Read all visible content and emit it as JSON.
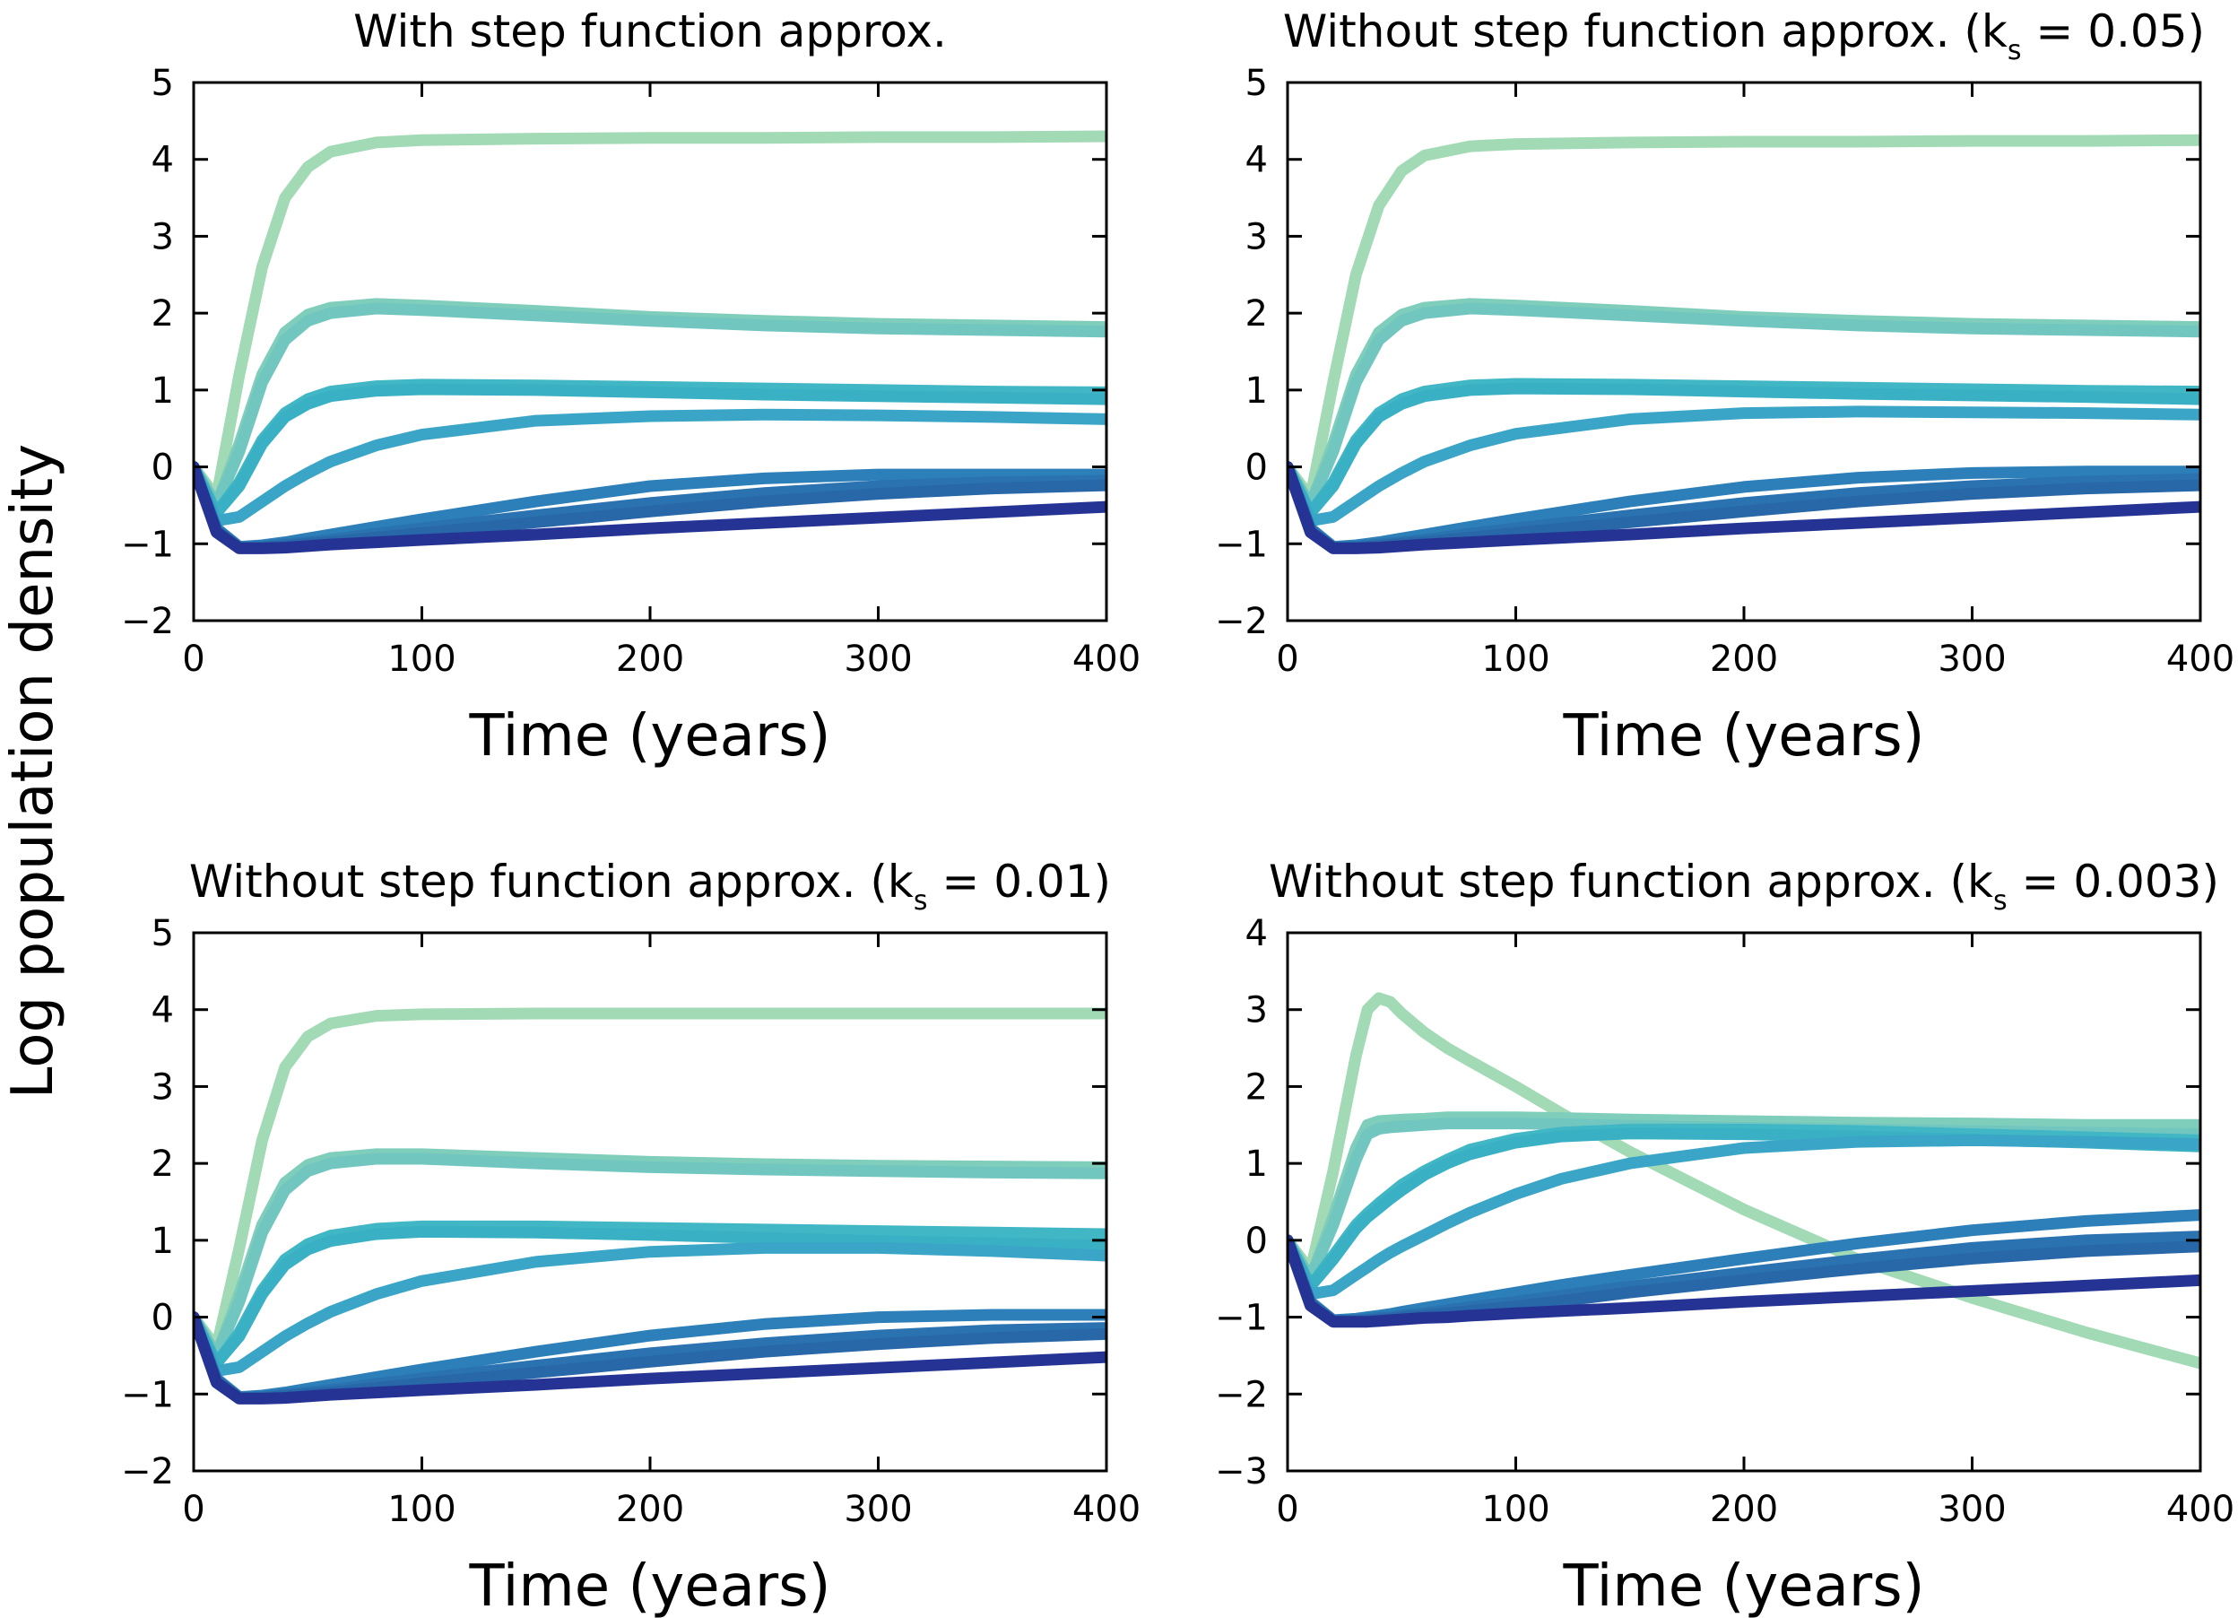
{
  "figure": {
    "ylabel": "Log population density",
    "series_colors": [
      "#a1dab4",
      "#7fcdbb",
      "#41b6c4",
      "#3aa5c6",
      "#2c7fb8",
      "#2867a8",
      "#253494"
    ]
  },
  "chart_data": [
    {
      "type": "line",
      "title": "With step function approx.",
      "title_sub": "",
      "title_suffix": "",
      "xlabel": "Time (years)",
      "ylabel": "Log population density",
      "xlim": [
        0,
        400
      ],
      "ylim": [
        -2,
        5
      ],
      "xticks": [
        0,
        100,
        200,
        300,
        400
      ],
      "yticks": [
        -2,
        -1,
        0,
        1,
        2,
        3,
        4,
        5
      ],
      "ytick_labels": [
        "−2",
        "−1",
        "0",
        "1",
        "2",
        "3",
        "4",
        "5"
      ],
      "x": [
        0,
        10,
        20,
        30,
        40,
        50,
        60,
        80,
        100,
        150,
        200,
        250,
        300,
        350,
        400
      ],
      "series": [
        {
          "color": "#a1dab4",
          "values": [
            0,
            -0.4,
            1.2,
            2.6,
            3.5,
            3.9,
            4.1,
            4.22,
            4.25,
            4.27,
            4.28,
            4.28,
            4.29,
            4.29,
            4.3
          ]
        },
        {
          "color": "#7fcdbb",
          "values": [
            0,
            -0.5,
            0.3,
            1.2,
            1.75,
            1.98,
            2.07,
            2.12,
            2.1,
            2.03,
            1.95,
            1.9,
            1.86,
            1.84,
            1.82
          ]
        },
        {
          "color": "#72c6c0",
          "values": [
            0,
            -0.5,
            0.2,
            1.1,
            1.65,
            1.9,
            2.0,
            2.06,
            2.04,
            1.97,
            1.9,
            1.84,
            1.8,
            1.78,
            1.76
          ]
        },
        {
          "color": "#41b6c4",
          "values": [
            0,
            -0.6,
            -0.2,
            0.35,
            0.7,
            0.88,
            0.98,
            1.05,
            1.07,
            1.06,
            1.04,
            1.02,
            1.0,
            0.98,
            0.97
          ]
        },
        {
          "color": "#3ab0c4",
          "values": [
            0,
            -0.6,
            -0.25,
            0.3,
            0.65,
            0.82,
            0.92,
            0.99,
            1.01,
            1.0,
            0.97,
            0.94,
            0.92,
            0.9,
            0.88
          ]
        },
        {
          "color": "#3aa5c6",
          "values": [
            0,
            -0.7,
            -0.65,
            -0.45,
            -0.25,
            -0.08,
            0.07,
            0.28,
            0.42,
            0.6,
            0.66,
            0.68,
            0.67,
            0.65,
            0.62
          ]
        },
        {
          "color": "#2c7fb8",
          "values": [
            0,
            -0.8,
            -1.04,
            -1.02,
            -0.98,
            -0.93,
            -0.88,
            -0.78,
            -0.68,
            -0.45,
            -0.25,
            -0.15,
            -0.1,
            -0.1,
            -0.1
          ]
        },
        {
          "color": "#2a72b0",
          "values": [
            0,
            -0.82,
            -1.05,
            -1.04,
            -1.01,
            -0.98,
            -0.95,
            -0.87,
            -0.8,
            -0.63,
            -0.47,
            -0.34,
            -0.25,
            -0.2,
            -0.18
          ]
        },
        {
          "color": "#2867a8",
          "values": [
            0,
            -0.83,
            -1.05,
            -1.05,
            -1.03,
            -1.0,
            -0.98,
            -0.92,
            -0.86,
            -0.72,
            -0.58,
            -0.45,
            -0.35,
            -0.28,
            -0.24
          ]
        },
        {
          "color": "#253494",
          "values": [
            0,
            -0.85,
            -1.06,
            -1.06,
            -1.05,
            -1.03,
            -1.01,
            -0.98,
            -0.95,
            -0.88,
            -0.8,
            -0.73,
            -0.66,
            -0.59,
            -0.52
          ]
        }
      ]
    },
    {
      "type": "line",
      "title": "Without step function approx. (k",
      "title_sub": "s",
      "title_suffix": " = 0.05)",
      "xlabel": "Time (years)",
      "ylabel": "Log population density",
      "xlim": [
        0,
        400
      ],
      "ylim": [
        -2,
        5
      ],
      "xticks": [
        0,
        100,
        200,
        300,
        400
      ],
      "yticks": [
        -2,
        -1,
        0,
        1,
        2,
        3,
        4,
        5
      ],
      "ytick_labels": [
        "−2",
        "−1",
        "0",
        "1",
        "2",
        "3",
        "4",
        "5"
      ],
      "x": [
        0,
        10,
        20,
        30,
        40,
        50,
        60,
        80,
        100,
        150,
        200,
        250,
        300,
        350,
        400
      ],
      "series": [
        {
          "color": "#a1dab4",
          "values": [
            0,
            -0.4,
            1.1,
            2.5,
            3.4,
            3.85,
            4.05,
            4.17,
            4.2,
            4.22,
            4.23,
            4.23,
            4.24,
            4.24,
            4.25
          ]
        },
        {
          "color": "#7fcdbb",
          "values": [
            0,
            -0.5,
            0.3,
            1.2,
            1.75,
            1.98,
            2.07,
            2.12,
            2.1,
            2.03,
            1.95,
            1.9,
            1.86,
            1.84,
            1.82
          ]
        },
        {
          "color": "#72c6c0",
          "values": [
            0,
            -0.5,
            0.2,
            1.1,
            1.65,
            1.9,
            2.0,
            2.06,
            2.04,
            1.97,
            1.9,
            1.84,
            1.8,
            1.78,
            1.76
          ]
        },
        {
          "color": "#41b6c4",
          "values": [
            0,
            -0.6,
            -0.2,
            0.35,
            0.7,
            0.88,
            0.98,
            1.06,
            1.08,
            1.07,
            1.05,
            1.03,
            1.01,
            0.99,
            0.98
          ]
        },
        {
          "color": "#3ab0c4",
          "values": [
            0,
            -0.6,
            -0.25,
            0.3,
            0.65,
            0.82,
            0.92,
            1.0,
            1.02,
            1.01,
            0.98,
            0.95,
            0.93,
            0.91,
            0.88
          ]
        },
        {
          "color": "#3aa5c6",
          "values": [
            0,
            -0.7,
            -0.65,
            -0.45,
            -0.25,
            -0.08,
            0.07,
            0.28,
            0.43,
            0.62,
            0.7,
            0.72,
            0.71,
            0.7,
            0.68
          ]
        },
        {
          "color": "#2c7fb8",
          "values": [
            0,
            -0.8,
            -1.04,
            -1.02,
            -0.98,
            -0.93,
            -0.88,
            -0.78,
            -0.68,
            -0.45,
            -0.26,
            -0.14,
            -0.08,
            -0.06,
            -0.06
          ]
        },
        {
          "color": "#2a72b0",
          "values": [
            0,
            -0.82,
            -1.05,
            -1.04,
            -1.01,
            -0.98,
            -0.95,
            -0.87,
            -0.8,
            -0.63,
            -0.47,
            -0.34,
            -0.25,
            -0.19,
            -0.16
          ]
        },
        {
          "color": "#2867a8",
          "values": [
            0,
            -0.83,
            -1.05,
            -1.05,
            -1.03,
            -1.0,
            -0.98,
            -0.92,
            -0.86,
            -0.72,
            -0.58,
            -0.45,
            -0.35,
            -0.28,
            -0.24
          ]
        },
        {
          "color": "#253494",
          "values": [
            0,
            -0.85,
            -1.06,
            -1.06,
            -1.05,
            -1.03,
            -1.01,
            -0.98,
            -0.95,
            -0.88,
            -0.8,
            -0.73,
            -0.66,
            -0.59,
            -0.52
          ]
        }
      ]
    },
    {
      "type": "line",
      "title": "Without step function approx. (k",
      "title_sub": "s",
      "title_suffix": " = 0.01)",
      "xlabel": "Time (years)",
      "ylabel": "Log population density",
      "xlim": [
        0,
        400
      ],
      "ylim": [
        -2,
        5
      ],
      "xticks": [
        0,
        100,
        200,
        300,
        400
      ],
      "yticks": [
        -2,
        -1,
        0,
        1,
        2,
        3,
        4,
        5
      ],
      "ytick_labels": [
        "−2",
        "−1",
        "0",
        "1",
        "2",
        "3",
        "4",
        "5"
      ],
      "x": [
        0,
        10,
        20,
        30,
        40,
        50,
        60,
        80,
        100,
        150,
        200,
        250,
        300,
        350,
        400
      ],
      "series": [
        {
          "color": "#a1dab4",
          "values": [
            0,
            -0.4,
            0.9,
            2.3,
            3.25,
            3.65,
            3.82,
            3.92,
            3.94,
            3.95,
            3.95,
            3.95,
            3.95,
            3.95,
            3.95
          ]
        },
        {
          "color": "#7fcdbb",
          "values": [
            0,
            -0.5,
            0.3,
            1.2,
            1.75,
            1.98,
            2.07,
            2.12,
            2.12,
            2.07,
            2.02,
            1.99,
            1.97,
            1.96,
            1.95
          ]
        },
        {
          "color": "#72c6c0",
          "values": [
            0,
            -0.5,
            0.2,
            1.1,
            1.65,
            1.9,
            2.0,
            2.06,
            2.06,
            2.0,
            1.95,
            1.92,
            1.9,
            1.88,
            1.87
          ]
        },
        {
          "color": "#41b6c4",
          "values": [
            0,
            -0.6,
            -0.2,
            0.35,
            0.75,
            0.95,
            1.06,
            1.15,
            1.18,
            1.18,
            1.16,
            1.14,
            1.12,
            1.1,
            1.08
          ]
        },
        {
          "color": "#3ab0c4",
          "values": [
            0,
            -0.6,
            -0.25,
            0.3,
            0.68,
            0.88,
            0.99,
            1.08,
            1.11,
            1.1,
            1.07,
            1.03,
            0.99,
            0.96,
            0.93
          ]
        },
        {
          "color": "#3aa5c6",
          "values": [
            0,
            -0.7,
            -0.65,
            -0.45,
            -0.25,
            -0.08,
            0.07,
            0.3,
            0.47,
            0.72,
            0.85,
            0.9,
            0.9,
            0.86,
            0.8
          ]
        },
        {
          "color": "#2c7fb8",
          "values": [
            0,
            -0.8,
            -1.04,
            -1.02,
            -0.98,
            -0.93,
            -0.88,
            -0.78,
            -0.68,
            -0.45,
            -0.24,
            -0.09,
            0.0,
            0.03,
            0.03
          ]
        },
        {
          "color": "#2a72b0",
          "values": [
            0,
            -0.82,
            -1.05,
            -1.04,
            -1.01,
            -0.98,
            -0.95,
            -0.87,
            -0.8,
            -0.63,
            -0.47,
            -0.34,
            -0.24,
            -0.17,
            -0.14
          ]
        },
        {
          "color": "#2867a8",
          "values": [
            0,
            -0.83,
            -1.05,
            -1.05,
            -1.03,
            -1.0,
            -0.98,
            -0.92,
            -0.86,
            -0.72,
            -0.58,
            -0.45,
            -0.35,
            -0.27,
            -0.22
          ]
        },
        {
          "color": "#253494",
          "values": [
            0,
            -0.85,
            -1.06,
            -1.06,
            -1.05,
            -1.03,
            -1.01,
            -0.98,
            -0.95,
            -0.88,
            -0.8,
            -0.73,
            -0.66,
            -0.59,
            -0.52
          ]
        }
      ]
    },
    {
      "type": "line",
      "title": "Without step function approx. (k",
      "title_sub": "s",
      "title_suffix": " = 0.003)",
      "xlabel": "Time (years)",
      "ylabel": "Log population density",
      "xlim": [
        0,
        400
      ],
      "ylim": [
        -3,
        4
      ],
      "xticks": [
        0,
        100,
        200,
        300,
        400
      ],
      "yticks": [
        -3,
        -2,
        -1,
        0,
        1,
        2,
        3,
        4
      ],
      "ytick_labels": [
        "−3",
        "−2",
        "−1",
        "0",
        "1",
        "2",
        "3",
        "4"
      ],
      "x": [
        0,
        10,
        20,
        30,
        35,
        40,
        45,
        50,
        60,
        70,
        80,
        100,
        120,
        150,
        200,
        250,
        300,
        350,
        400
      ],
      "series": [
        {
          "color": "#a1dab4",
          "values": [
            0,
            -0.4,
            0.9,
            2.4,
            3.0,
            3.15,
            3.1,
            2.95,
            2.7,
            2.5,
            2.33,
            2.0,
            1.65,
            1.15,
            0.4,
            -0.25,
            -0.75,
            -1.2,
            -1.6
          ]
        },
        {
          "color": "#7fcdbb",
          "values": [
            0,
            -0.5,
            0.3,
            1.2,
            1.5,
            1.55,
            1.56,
            1.57,
            1.58,
            1.6,
            1.6,
            1.6,
            1.59,
            1.57,
            1.55,
            1.53,
            1.52,
            1.5,
            1.5
          ]
        },
        {
          "color": "#72c6c0",
          "values": [
            0,
            -0.5,
            0.2,
            1.05,
            1.38,
            1.45,
            1.47,
            1.48,
            1.5,
            1.52,
            1.52,
            1.52,
            1.51,
            1.49,
            1.46,
            1.44,
            1.42,
            1.4,
            1.38
          ]
        },
        {
          "color": "#41b6c4",
          "values": [
            0,
            -0.6,
            -0.2,
            0.2,
            0.35,
            0.48,
            0.6,
            0.72,
            0.9,
            1.05,
            1.18,
            1.32,
            1.4,
            1.44,
            1.44,
            1.42,
            1.38,
            1.34,
            1.3
          ]
        },
        {
          "color": "#3ab0c4",
          "values": [
            0,
            -0.6,
            -0.25,
            0.15,
            0.3,
            0.42,
            0.54,
            0.65,
            0.85,
            1.0,
            1.12,
            1.27,
            1.35,
            1.39,
            1.38,
            1.35,
            1.31,
            1.27,
            1.22
          ]
        },
        {
          "color": "#3aa5c6",
          "values": [
            0,
            -0.7,
            -0.65,
            -0.45,
            -0.35,
            -0.25,
            -0.16,
            -0.08,
            0.07,
            0.22,
            0.36,
            0.6,
            0.8,
            1.0,
            1.2,
            1.28,
            1.3,
            1.28,
            1.25
          ]
        },
        {
          "color": "#2c7fb8",
          "values": [
            0,
            -0.8,
            -1.04,
            -1.02,
            -1.0,
            -0.98,
            -0.96,
            -0.93,
            -0.88,
            -0.83,
            -0.78,
            -0.68,
            -0.58,
            -0.45,
            -0.24,
            -0.04,
            0.13,
            0.25,
            0.33
          ]
        },
        {
          "color": "#2a72b0",
          "values": [
            0,
            -0.82,
            -1.05,
            -1.04,
            -1.03,
            -1.01,
            -1.0,
            -0.98,
            -0.95,
            -0.91,
            -0.87,
            -0.8,
            -0.72,
            -0.6,
            -0.42,
            -0.25,
            -0.1,
            0.0,
            0.05
          ]
        },
        {
          "color": "#2867a8",
          "values": [
            0,
            -0.83,
            -1.05,
            -1.05,
            -1.04,
            -1.03,
            -1.02,
            -1.0,
            -0.98,
            -0.95,
            -0.92,
            -0.86,
            -0.79,
            -0.68,
            -0.52,
            -0.37,
            -0.24,
            -0.14,
            -0.08
          ]
        },
        {
          "color": "#253494",
          "values": [
            0,
            -0.85,
            -1.06,
            -1.06,
            -1.06,
            -1.05,
            -1.04,
            -1.03,
            -1.01,
            -1.0,
            -0.98,
            -0.95,
            -0.92,
            -0.88,
            -0.8,
            -0.73,
            -0.66,
            -0.59,
            -0.52
          ]
        }
      ]
    }
  ]
}
